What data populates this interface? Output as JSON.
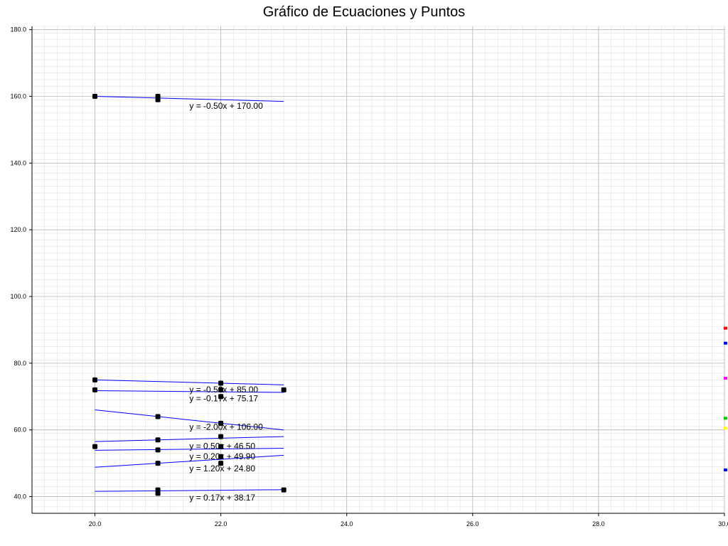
{
  "chart_data": {
    "type": "line",
    "title": "Gráfico de Ecuaciones y Puntos",
    "xlabel": "",
    "ylabel": "",
    "xlim": [
      19.0,
      30.0
    ],
    "ylim": [
      35.0,
      181.0
    ],
    "x_ticks": [
      20.0,
      22.0,
      24.0,
      26.0,
      28.0,
      30.0
    ],
    "x_tick_labels": [
      "20.0",
      "22.0",
      "24.0",
      "26.0",
      "28.0",
      "30.0"
    ],
    "y_ticks": [
      40.0,
      60.0,
      80.0,
      100.0,
      120.0,
      140.0,
      160.0,
      180.0
    ],
    "y_tick_labels": [
      "40.0",
      "60.0",
      "80.0",
      "100.0",
      "120.0",
      "140.0",
      "160.0",
      "180.0"
    ],
    "grid": true,
    "line_color": "#0000ff",
    "point_color": "#000000",
    "series": [
      {
        "equation": "y = -0.50x + 170.00",
        "slope": -0.5,
        "intercept": 170.0,
        "x_range": [
          20,
          23
        ],
        "points": [
          [
            20,
            160
          ],
          [
            21,
            160
          ],
          [
            21,
            159
          ]
        ]
      },
      {
        "equation": "y = -0.50x + 85.00",
        "slope": -0.5,
        "intercept": 85.0,
        "x_range": [
          20,
          23
        ],
        "points": [
          [
            20,
            75
          ],
          [
            22,
            74
          ]
        ]
      },
      {
        "equation": "y = -0.17x + 75.17",
        "slope": -0.17,
        "intercept": 75.17,
        "x_range": [
          20,
          23
        ],
        "points": [
          [
            20,
            72
          ],
          [
            22,
            72
          ],
          [
            22,
            70
          ],
          [
            23,
            72
          ]
        ]
      },
      {
        "equation": "y = -2.00x + 106.00",
        "slope": -2.0,
        "intercept": 106.0,
        "x_range": [
          20,
          23
        ],
        "points": [
          [
            21,
            64
          ],
          [
            22,
            62
          ]
        ]
      },
      {
        "equation": "y = 0.50x + 46.50",
        "slope": 0.5,
        "intercept": 46.5,
        "x_range": [
          20,
          23
        ],
        "points": [
          [
            20,
            55
          ],
          [
            21,
            57
          ],
          [
            22,
            58
          ]
        ]
      },
      {
        "equation": "y = 0.20x + 49.90",
        "slope": 0.2,
        "intercept": 49.9,
        "x_range": [
          20,
          23
        ],
        "points": [
          [
            21,
            54
          ],
          [
            22,
            55
          ],
          [
            22,
            52
          ]
        ]
      },
      {
        "equation": "y = 1.20x + 24.80",
        "slope": 1.2,
        "intercept": 24.8,
        "x_range": [
          20,
          23
        ],
        "points": [
          [
            21,
            50
          ],
          [
            22,
            50
          ]
        ]
      },
      {
        "equation": "y = 0.17x + 38.17",
        "slope": 0.17,
        "intercept": 38.17,
        "x_range": [
          20,
          23
        ],
        "points": [
          [
            21,
            42
          ],
          [
            21,
            41
          ],
          [
            23,
            42
          ]
        ]
      }
    ],
    "edge_markers": [
      {
        "y": 90.5,
        "color": "#ff0000"
      },
      {
        "y": 86.0,
        "color": "#0000ff"
      },
      {
        "y": 75.5,
        "color": "#ff00ff"
      },
      {
        "y": 63.5,
        "color": "#00cc00"
      },
      {
        "y": 60.5,
        "color": "#ffff00"
      },
      {
        "y": 48.0,
        "color": "#0000ff"
      }
    ]
  }
}
